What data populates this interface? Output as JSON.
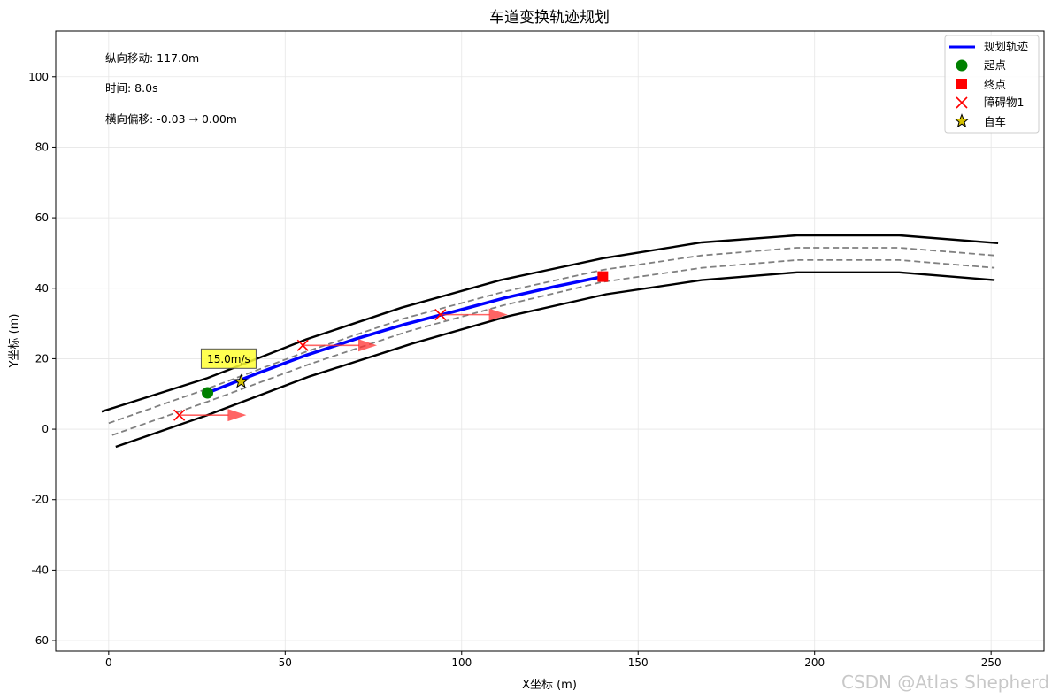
{
  "watermark": "CSDN @Atlas Shepherd",
  "chart_data": {
    "type": "line",
    "title": "车道变换轨迹规划",
    "xlabel": "X坐标 (m)",
    "ylabel": "Y坐标 (m)",
    "xlim": [
      -15,
      265
    ],
    "ylim": [
      -63,
      113
    ],
    "xticks": [
      0,
      50,
      100,
      150,
      200,
      250
    ],
    "yticks": [
      -60,
      -40,
      -20,
      0,
      20,
      40,
      60,
      80,
      100
    ],
    "grid": true,
    "legend_position": "top-right",
    "info_text": [
      "纵向移动: 117.0m",
      "时间: 8.0s",
      "横向偏移: -0.03 → 0.00m"
    ],
    "road": {
      "boundary_left": [
        [
          -2,
          5
        ],
        [
          28,
          14.5
        ],
        [
          56,
          25.5
        ],
        [
          83,
          34.5
        ],
        [
          111,
          42.3
        ],
        [
          140,
          48.5
        ],
        [
          168,
          53
        ],
        [
          195,
          55
        ],
        [
          224,
          55
        ],
        [
          252,
          52.8
        ]
      ],
      "boundary_right": [
        [
          2,
          -5
        ],
        [
          28,
          4
        ],
        [
          57,
          15
        ],
        [
          86,
          24.3
        ],
        [
          113,
          32
        ],
        [
          141,
          38.3
        ],
        [
          168,
          42.3
        ],
        [
          195,
          44.5
        ],
        [
          224,
          44.5
        ],
        [
          251,
          42.3
        ]
      ],
      "lane_left": [
        [
          0,
          1.7
        ],
        [
          28,
          11.5
        ],
        [
          56,
          22
        ],
        [
          84,
          31.5
        ],
        [
          112,
          39
        ],
        [
          140,
          45.2
        ],
        [
          168,
          49.3
        ],
        [
          195,
          51.5
        ],
        [
          224,
          51.5
        ],
        [
          251,
          49.3
        ]
      ],
      "lane_right": [
        [
          1,
          -1.7
        ],
        [
          28,
          7.8
        ],
        [
          57,
          18.5
        ],
        [
          85,
          27.8
        ],
        [
          112,
          35.2
        ],
        [
          140,
          41.8
        ],
        [
          168,
          45.8
        ],
        [
          195,
          48
        ],
        [
          224,
          48
        ],
        [
          251,
          45.8
        ]
      ]
    },
    "series": [
      {
        "name": "规划轨迹",
        "color": "#0000ff",
        "x": [
          28,
          42,
          56,
          70,
          84,
          98,
          112,
          126,
          140
        ],
        "y": [
          10.3,
          15.8,
          21,
          25.6,
          29.8,
          33.4,
          37.2,
          40.4,
          43.3
        ]
      }
    ],
    "start_point": {
      "name": "起点",
      "x": 28,
      "y": 10.3,
      "color": "#008000"
    },
    "end_point": {
      "name": "终点",
      "x": 140,
      "y": 43.3,
      "color": "#ff0000"
    },
    "obstacles": {
      "name": "障碍物1",
      "color": "#ff0000",
      "points": [
        {
          "x": 20,
          "y": 4,
          "vx_end": 39
        },
        {
          "x": 55,
          "y": 23.8,
          "vx_end": 76
        },
        {
          "x": 94,
          "y": 32.5,
          "vx_end": 113
        }
      ]
    },
    "ego": {
      "name": "自车",
      "x": 37.5,
      "y": 13.5,
      "color": "#d4c000",
      "speed_label": "15.0m/s"
    }
  }
}
